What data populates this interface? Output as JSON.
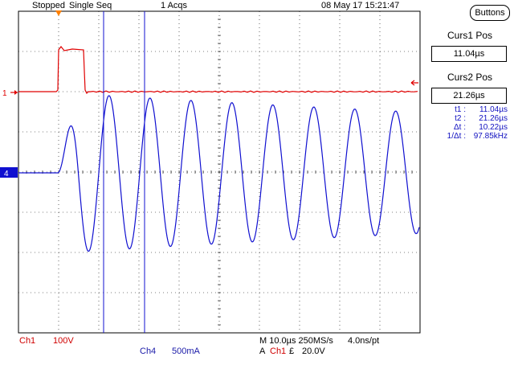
{
  "header": {
    "state": "Stopped",
    "mode": "Single Seq",
    "acqs": "1 Acqs",
    "datetime": "08 May 17 15:21:47"
  },
  "buttons_label": "Buttons",
  "cursors": {
    "curs1_label": "Curs1 Pos",
    "curs1_value": "11.04µs",
    "curs2_label": "Curs2 Pos",
    "curs2_value": "21.26µs",
    "curs1_time_us": 11.04,
    "curs2_time_us": 21.26
  },
  "measurements": [
    {
      "label": "t1 :",
      "value": "11.04µs"
    },
    {
      "label": "t2 :",
      "value": "21.26µs"
    },
    {
      "label": "Δt :",
      "value": "10.22µs"
    },
    {
      "label": "1/Δt :",
      "value": "97.85kHz"
    }
  ],
  "channels": {
    "ch1": {
      "marker": "1",
      "label": "Ch1",
      "scale": "100V",
      "color": "#e00000"
    },
    "ch4": {
      "marker": "4",
      "label": "Ch4",
      "scale": "500mA",
      "color": "#1010d0"
    }
  },
  "timebase": {
    "line1": "M 10.0µs 250MS/s",
    "line1b": "4.0ns/pt",
    "trig_prefix": "A",
    "trig_source": "Ch1",
    "trig_slope": "£",
    "trig_level": "20.0V"
  },
  "colors": {
    "grid": "#000000",
    "ch1": "#e00000",
    "ch4": "#1010d0",
    "trigger_marker": "#ff8000"
  }
}
